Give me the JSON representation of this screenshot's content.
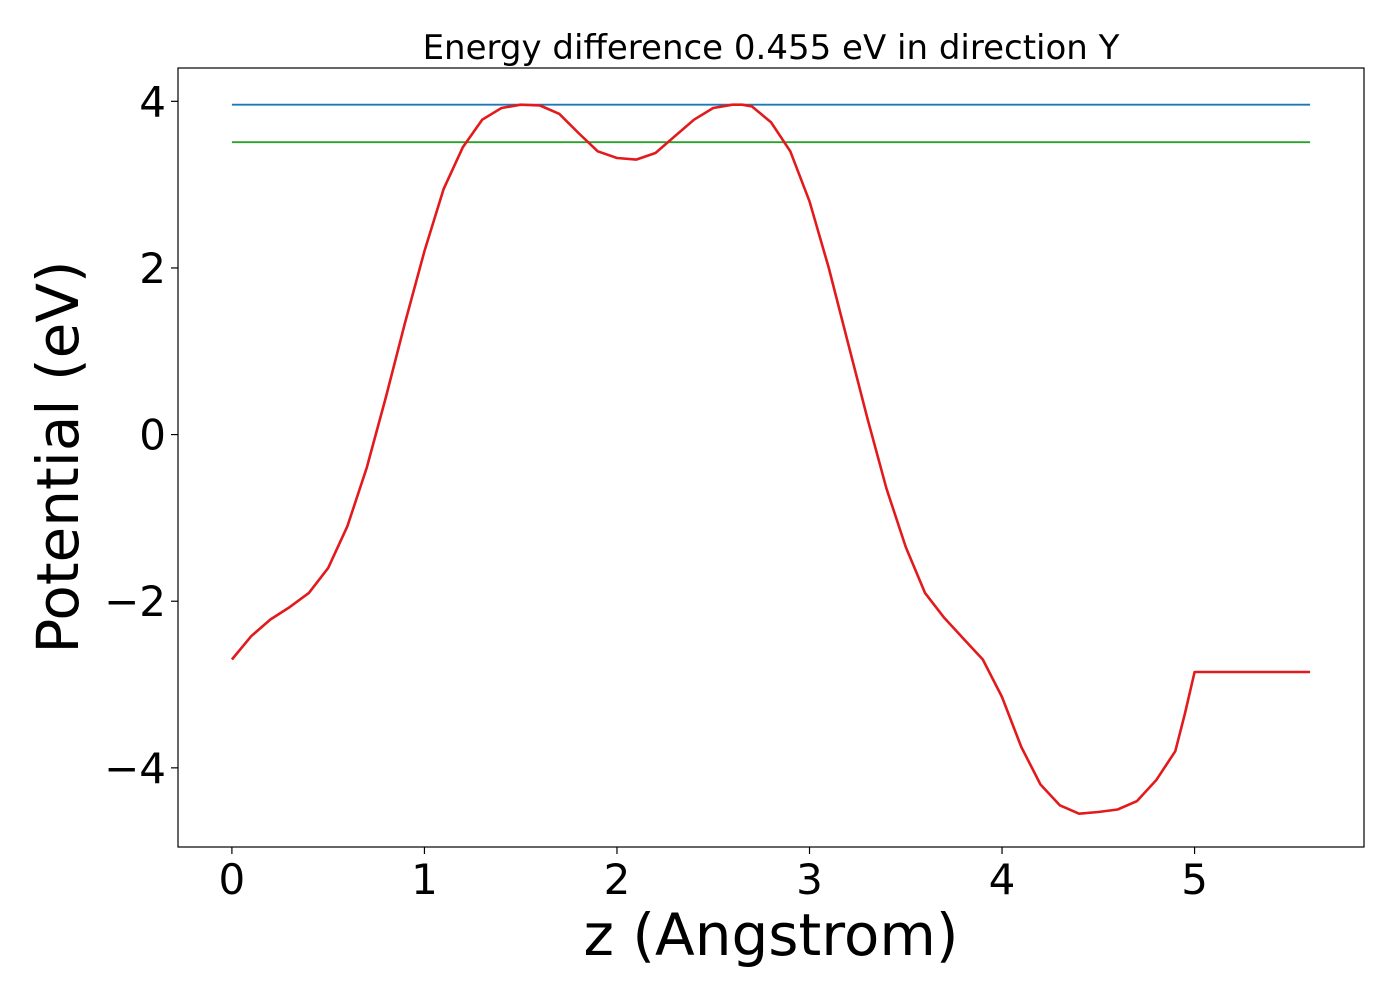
{
  "chart_data": {
    "type": "line",
    "title": "Energy difference 0.455 eV in direction Y",
    "xlabel": "z (Angstrom)",
    "ylabel": "Potential (eV)",
    "xlim": [
      -0.28,
      5.88
    ],
    "ylim": [
      -4.95,
      4.4
    ],
    "xticks": [
      0,
      1,
      2,
      3,
      4,
      5
    ],
    "xtick_labels": [
      "0",
      "1",
      "2",
      "3",
      "4",
      "5"
    ],
    "yticks": [
      -4,
      -2,
      0,
      2,
      4
    ],
    "ytick_labels": [
      "−4",
      "−2",
      "0",
      "2",
      "4"
    ],
    "grid": false,
    "series": [
      {
        "color": "#1f77b4",
        "x": [
          0,
          5.6
        ],
        "y": [
          3.96,
          3.96
        ]
      },
      {
        "color": "#2ca02c",
        "x": [
          0,
          5.6
        ],
        "y": [
          3.51,
          3.51
        ]
      },
      {
        "color": "#e31a1c",
        "x": [
          0,
          0.1,
          0.2,
          0.3,
          0.4,
          0.5,
          0.6,
          0.7,
          0.8,
          0.9,
          1.0,
          1.1,
          1.2,
          1.3,
          1.4,
          1.5,
          1.6,
          1.7,
          1.8,
          1.9,
          2.0,
          2.1,
          2.2,
          2.3,
          2.4,
          2.5,
          2.6,
          2.65,
          2.7,
          2.8,
          2.9,
          3.0,
          3.1,
          3.2,
          3.3,
          3.4,
          3.5,
          3.6,
          3.7,
          3.8,
          3.9,
          4.0,
          4.1,
          4.2,
          4.3,
          4.4,
          4.5,
          4.6,
          4.7,
          4.8,
          4.9,
          4.95,
          5.0,
          5.1,
          5.2,
          5.3,
          5.4,
          5.5,
          5.6
        ],
        "y": [
          -2.7,
          -2.42,
          -2.22,
          -2.07,
          -1.9,
          -1.6,
          -1.1,
          -0.4,
          0.45,
          1.35,
          2.2,
          2.95,
          3.45,
          3.78,
          3.92,
          3.96,
          3.95,
          3.85,
          3.62,
          3.4,
          3.32,
          3.3,
          3.38,
          3.58,
          3.78,
          3.92,
          3.96,
          3.96,
          3.94,
          3.75,
          3.4,
          2.8,
          2.0,
          1.1,
          0.2,
          -0.65,
          -1.35,
          -1.9,
          -2.2,
          -2.45,
          -2.7,
          -3.15,
          -3.75,
          -4.2,
          -4.45,
          -4.55,
          -4.53,
          -4.5,
          -4.4,
          -4.15,
          -3.8,
          -3.35,
          -2.85,
          -2.85,
          -2.85,
          -2.85,
          -2.85,
          -2.85,
          -2.85
        ]
      }
    ]
  }
}
